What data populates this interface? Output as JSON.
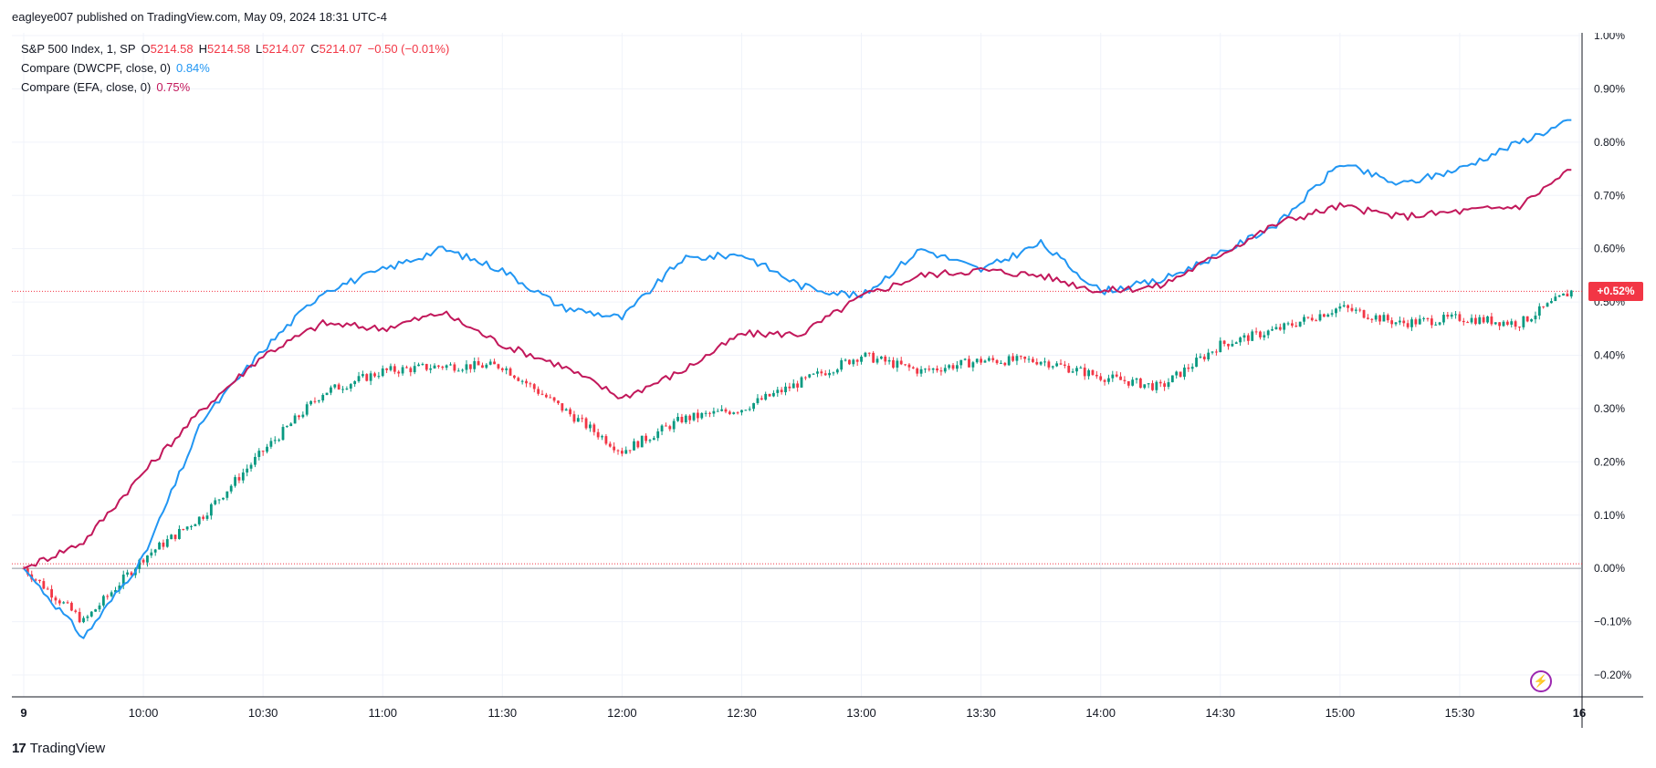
{
  "header": {
    "publisher_line": "eagleye007 published on TradingView.com, May 09, 2024 18:31 UTC-4"
  },
  "legend": {
    "main": {
      "name": "S&P 500 Index, 1, SP",
      "o_label": "O",
      "o": "5214.58",
      "h_label": "H",
      "h": "5214.58",
      "l_label": "L",
      "l": "5214.07",
      "c_label": "C",
      "c": "5214.07",
      "change": "−0.50 (−0.01%)"
    },
    "compare1": {
      "name": "Compare (DWCPF, close, 0)",
      "value": "0.84%"
    },
    "compare2": {
      "name": "Compare (EFA, close, 0)",
      "value": "0.75%"
    }
  },
  "price_tag": "+0.52%",
  "footer": {
    "brand": "TradingView",
    "logo_mark": "17"
  },
  "icons": {
    "lightning": "lightning-icon"
  },
  "colors": {
    "up": "#089981",
    "down": "#f23645",
    "dwcpf": "#2196f3",
    "efa": "#c2185b",
    "grid": "#f0f3fa"
  },
  "chart_data": {
    "type": "line",
    "title": "",
    "x_type": "time",
    "x_ticks": [
      "9",
      "10:00",
      "10:30",
      "11:00",
      "11:30",
      "12:00",
      "12:30",
      "13:00",
      "13:30",
      "14:00",
      "14:30",
      "15:00",
      "15:30",
      "16"
    ],
    "y_ticks": [
      "1.00%",
      "0.90%",
      "0.80%",
      "0.70%",
      "0.60%",
      "0.50%",
      "0.40%",
      "0.30%",
      "0.20%",
      "0.10%",
      "0.00%",
      "−0.10%",
      "−0.20%"
    ],
    "ylim": [
      -0.22,
      1.0
    ],
    "y_unit": "%",
    "grid": true,
    "series": [
      {
        "name": "S&P 500 Index",
        "style": "candles",
        "x": [
          "09:30",
          "09:45",
          "10:00",
          "10:15",
          "10:30",
          "10:45",
          "11:00",
          "11:15",
          "11:30",
          "11:45",
          "12:00",
          "12:15",
          "12:30",
          "12:45",
          "13:00",
          "13:15",
          "13:30",
          "13:45",
          "14:00",
          "14:15",
          "14:30",
          "14:45",
          "15:00",
          "15:15",
          "15:30",
          "15:45",
          "15:58"
        ],
        "values": [
          0.0,
          -0.1,
          0.02,
          0.1,
          0.22,
          0.33,
          0.37,
          0.38,
          0.38,
          0.3,
          0.22,
          0.28,
          0.3,
          0.35,
          0.4,
          0.37,
          0.39,
          0.39,
          0.36,
          0.34,
          0.42,
          0.45,
          0.49,
          0.46,
          0.47,
          0.46,
          0.52
        ]
      },
      {
        "name": "DWCPF",
        "style": "line",
        "x": [
          "09:30",
          "09:45",
          "10:00",
          "10:15",
          "10:30",
          "10:45",
          "11:00",
          "11:15",
          "11:30",
          "11:45",
          "12:00",
          "12:15",
          "12:30",
          "12:45",
          "13:00",
          "13:15",
          "13:30",
          "13:45",
          "14:00",
          "14:15",
          "14:30",
          "14:45",
          "15:00",
          "15:15",
          "15:30",
          "15:45",
          "15:58"
        ],
        "values": [
          0.0,
          -0.13,
          0.02,
          0.28,
          0.41,
          0.52,
          0.56,
          0.6,
          0.56,
          0.49,
          0.47,
          0.58,
          0.59,
          0.53,
          0.51,
          0.6,
          0.56,
          0.61,
          0.52,
          0.54,
          0.59,
          0.65,
          0.76,
          0.72,
          0.75,
          0.8,
          0.84
        ]
      },
      {
        "name": "EFA",
        "style": "line",
        "x": [
          "09:30",
          "09:45",
          "10:00",
          "10:15",
          "10:30",
          "10:45",
          "11:00",
          "11:15",
          "11:30",
          "11:45",
          "12:00",
          "12:15",
          "12:30",
          "12:45",
          "13:00",
          "13:15",
          "13:30",
          "13:45",
          "14:00",
          "14:15",
          "14:30",
          "14:45",
          "15:00",
          "15:15",
          "15:30",
          "15:45",
          "15:58"
        ],
        "values": [
          0.0,
          0.05,
          0.18,
          0.3,
          0.4,
          0.46,
          0.45,
          0.48,
          0.42,
          0.38,
          0.32,
          0.37,
          0.44,
          0.44,
          0.51,
          0.55,
          0.56,
          0.55,
          0.52,
          0.53,
          0.59,
          0.65,
          0.68,
          0.66,
          0.67,
          0.68,
          0.75
        ]
      }
    ],
    "last_value_line": 0.52,
    "baseline": 0.0
  }
}
